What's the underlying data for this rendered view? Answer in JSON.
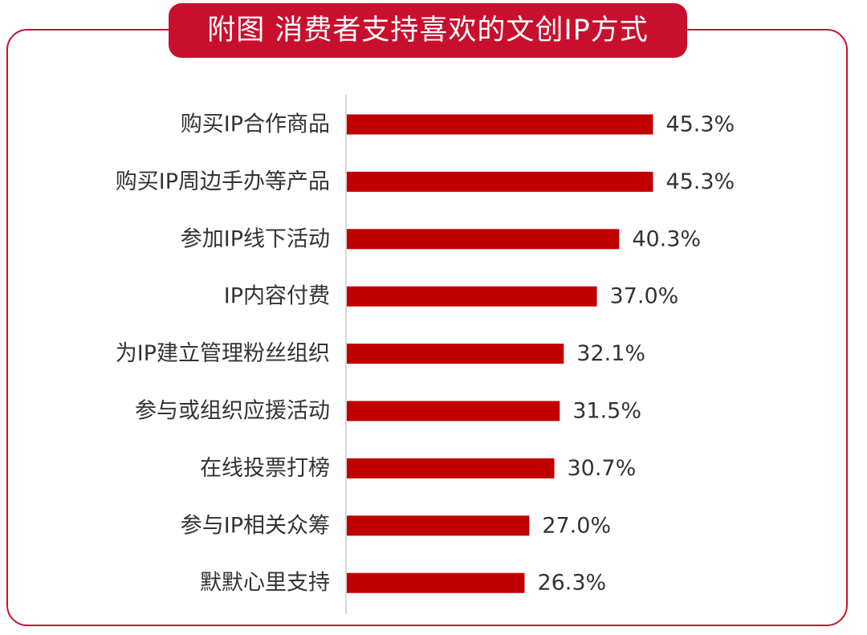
{
  "chart_data": {
    "type": "bar",
    "orientation": "horizontal",
    "title": "附图 消费者支持喜欢的文创IP方式",
    "categories": [
      "购买IP合作商品",
      "购买IP周边手办等产品",
      "参加IP线下活动",
      "IP内容付费",
      "为IP建立管理粉丝组织",
      "参与或组织应援活动",
      "在线投票打榜",
      "参与IP相关众筹",
      "默默心里支持"
    ],
    "values": [
      45.3,
      45.3,
      40.3,
      37.0,
      32.1,
      31.5,
      30.7,
      27.0,
      26.3
    ],
    "value_labels": [
      "45.3%",
      "45.3%",
      "40.3%",
      "37.0%",
      "32.1%",
      "31.5%",
      "30.7%",
      "27.0%",
      "26.3%"
    ],
    "unit": "%",
    "xlim": [
      0,
      50
    ],
    "grid": false,
    "legend": "none",
    "colors": {
      "bar": "#c00000",
      "accent": "#c8102e",
      "axis": "#d9d9d9",
      "text": "#333333"
    }
  }
}
